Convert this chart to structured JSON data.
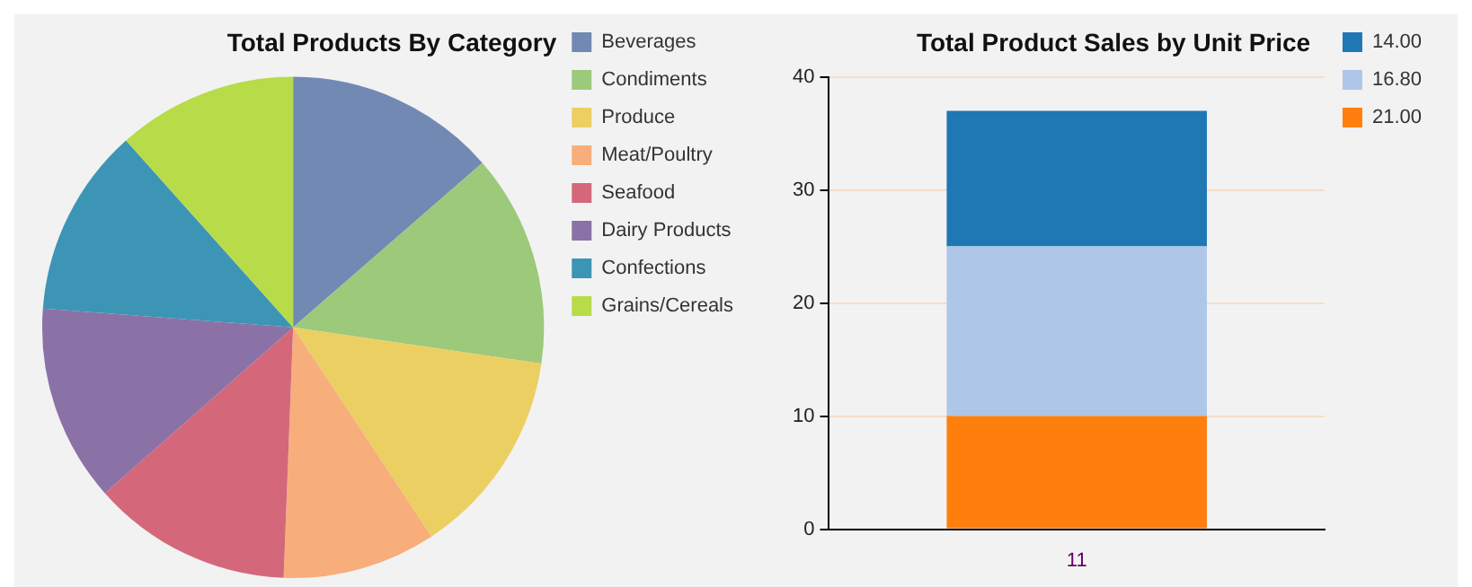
{
  "chart_data": [
    {
      "type": "pie",
      "title": "Total Products By Category",
      "categories": [
        "Beverages",
        "Condiments",
        "Produce",
        "Meat/Poultry",
        "Seafood",
        "Dairy Products",
        "Confections",
        "Grains/Cereals"
      ],
      "values": [
        13.6,
        13.7,
        13.4,
        9.9,
        12.9,
        12.7,
        12.2,
        11.6
      ],
      "colors": [
        "#7289b4",
        "#9cc97a",
        "#ebcf62",
        "#f7ae7a",
        "#d4687a",
        "#8b72a6",
        "#3d95b6",
        "#b8db4a"
      ],
      "legend": "top right"
    },
    {
      "type": "bar",
      "title": "Total Product Sales by Unit Price",
      "categories": [
        "11"
      ],
      "stacked": true,
      "series": [
        {
          "name": "21.00",
          "color": "#ff7f0e",
          "values": [
            10
          ]
        },
        {
          "name": "16.80",
          "color": "#aec7e8",
          "values": [
            15
          ]
        },
        {
          "name": "14.00",
          "color": "#1f77b4",
          "values": [
            12
          ]
        }
      ],
      "ylim": [
        0,
        40
      ],
      "yticks": [
        0,
        10,
        20,
        30,
        40
      ],
      "grid": "y",
      "legend": "top right"
    }
  ]
}
